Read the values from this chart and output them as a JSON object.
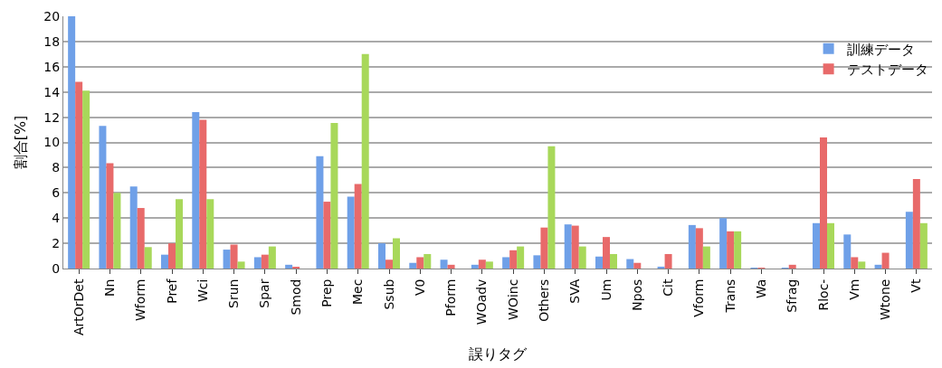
{
  "chart_data": {
    "type": "bar",
    "xlabel": "誤りタグ",
    "ylabel": "割合[%]",
    "categories": [
      "ArtOrDet",
      "Nn",
      "Wform",
      "Pref",
      "Wci",
      "Srun",
      "Spar",
      "Smod",
      "Prep",
      "Mec",
      "Ssub",
      "V0",
      "Pform",
      "WOadv",
      "WOinc",
      "Others",
      "SVA",
      "Um",
      "Npos",
      "Cit",
      "Vform",
      "Trans",
      "Wa",
      "Sfrag",
      "Rloc-",
      "Vm",
      "Wtone",
      "Vt"
    ],
    "series": [
      {
        "name": "訓練データ",
        "color": "#6fa0e8",
        "values": [
          20,
          11.3,
          6.5,
          1.1,
          12.4,
          1.5,
          0.9,
          0.3,
          8.9,
          5.7,
          2.0,
          0.45,
          0.7,
          0.3,
          0.9,
          1.05,
          3.5,
          0.95,
          0.75,
          0.15,
          3.45,
          4.0,
          0.07,
          0.05,
          3.6,
          2.7,
          0.3,
          4.5
        ]
      },
      {
        "name": "テストデータ",
        "color": "#e86a6a",
        "values": [
          14.8,
          8.35,
          4.8,
          2.0,
          11.8,
          1.9,
          1.1,
          0.1,
          5.3,
          6.7,
          0.7,
          0.9,
          0.3,
          0.7,
          1.45,
          3.25,
          3.4,
          2.5,
          0.45,
          1.15,
          3.2,
          2.95,
          0.07,
          0.3,
          10.4,
          0.9,
          1.25,
          7.1
        ]
      },
      {
        "color": "#a8d85a",
        "values": [
          14.1,
          6.0,
          1.7,
          5.5,
          5.5,
          0.55,
          1.75,
          0,
          11.55,
          17.0,
          2.4,
          1.15,
          0,
          0.55,
          1.75,
          9.7,
          1.75,
          1.15,
          0,
          0,
          1.75,
          2.95,
          0,
          0,
          3.6,
          0.55,
          0,
          3.6
        ]
      }
    ],
    "ylim": [
      0,
      20
    ],
    "yticks": [
      0,
      2,
      4,
      6,
      8,
      10,
      12,
      14,
      16,
      18,
      20
    ],
    "grid": "y",
    "legend": "top right"
  }
}
